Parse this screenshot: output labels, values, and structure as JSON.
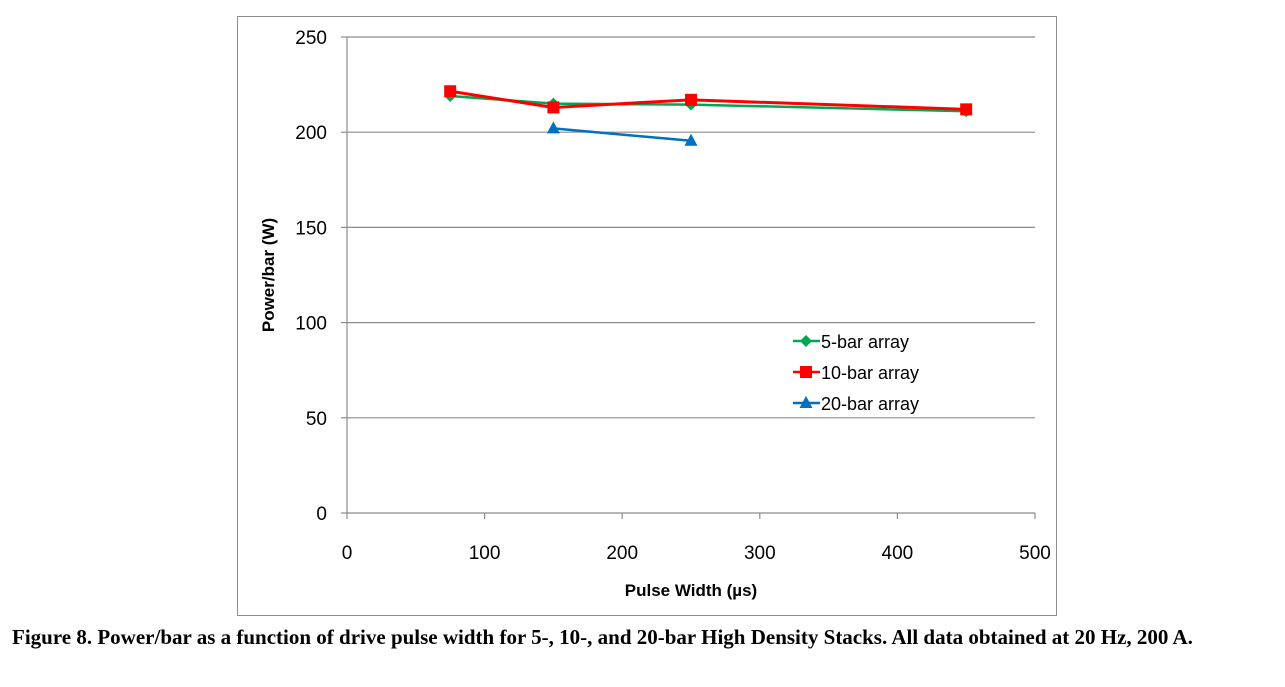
{
  "chart_data": {
    "type": "line",
    "title": "",
    "xlabel": "Pulse Width (µs)",
    "ylabel": "Power/bar (W)",
    "xlim": [
      0,
      500
    ],
    "ylim": [
      0,
      250
    ],
    "xticks": [
      0,
      100,
      200,
      300,
      400,
      500
    ],
    "yticks": [
      0,
      50,
      100,
      150,
      200,
      250
    ],
    "grid": "horizontal",
    "legend_position": "center-right",
    "series": [
      {
        "name": "5-bar array",
        "color": "#00a651",
        "marker": "diamond",
        "x": [
          75,
          150,
          250,
          450
        ],
        "y": [
          219,
          215,
          214.5,
          211
        ]
      },
      {
        "name": "10-bar array",
        "color": "#ff0000",
        "marker": "square",
        "x": [
          75,
          150,
          250,
          450
        ],
        "y": [
          221.5,
          213,
          217,
          212
        ]
      },
      {
        "name": "20-bar array",
        "color": "#0070c0",
        "marker": "triangle",
        "x": [
          150,
          250
        ],
        "y": [
          202,
          195.5
        ]
      }
    ]
  },
  "caption": "Figure 8.  Power/bar as a function of drive pulse width for 5-, 10-, and 20-bar High Density Stacks.  All data obtained at 20 Hz, 200 A."
}
